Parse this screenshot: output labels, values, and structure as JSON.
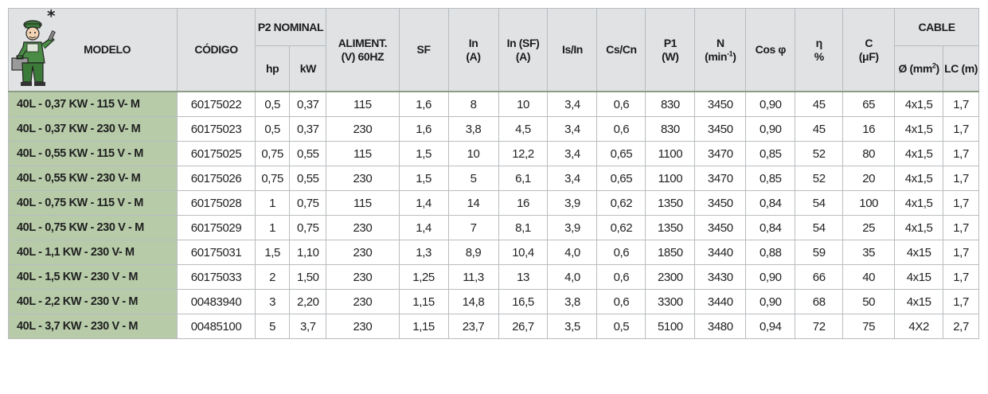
{
  "header": {
    "modelo": "MODELO",
    "codigo": "CÓDIGO",
    "p2_nominal": "P2 NOMINAL",
    "hp": "hp",
    "kw": "kW",
    "aliment_line1": "ALIMENT.",
    "aliment_line2": "(V) 60HZ",
    "sf": "SF",
    "in_line1": "In",
    "in_line2": "(A)",
    "insf_line1": "In (SF)",
    "insf_line2": "(A)",
    "is_in": "Is/In",
    "cs_cn": "Cs/Cn",
    "p1_line1": "P1",
    "p1_line2": "(W)",
    "n_line1": "N",
    "n_line2": "(min",
    "n_sup": "-1",
    "n_line2_close": ")",
    "cos_phi": "Cos φ",
    "eta_line1": "η",
    "eta_line2": "%",
    "c_line1": "C",
    "c_line2": "(μF)",
    "cable": "CABLE",
    "diam": "Ø (mm",
    "diam_sup": "2",
    "diam_close": ")",
    "lc": "LC (m)"
  },
  "rows": [
    {
      "modelo": "40L - 0,37 KW - 115 V- M",
      "codigo": "60175022",
      "hp": "0,5",
      "kw": "0,37",
      "aliment": "115",
      "sf": "1,6",
      "in": "8",
      "insf": "10",
      "isin": "3,4",
      "cscn": "0,6",
      "p1": "830",
      "n": "3450",
      "cos": "0,90",
      "eta": "45",
      "c": "65",
      "diam": "4x1,5",
      "lc": "1,7"
    },
    {
      "modelo": "40L - 0,37 KW - 230 V- M",
      "codigo": "60175023",
      "hp": "0,5",
      "kw": "0,37",
      "aliment": "230",
      "sf": "1,6",
      "in": "3,8",
      "insf": "4,5",
      "isin": "3,4",
      "cscn": "0,6",
      "p1": "830",
      "n": "3450",
      "cos": "0,90",
      "eta": "45",
      "c": "16",
      "diam": "4x1,5",
      "lc": "1,7"
    },
    {
      "modelo": "40L - 0,55 KW - 115 V - M",
      "codigo": "60175025",
      "hp": "0,75",
      "kw": "0,55",
      "aliment": "115",
      "sf": "1,5",
      "in": "10",
      "insf": "12,2",
      "isin": "3,4",
      "cscn": "0,65",
      "p1": "1100",
      "n": "3470",
      "cos": "0,85",
      "eta": "52",
      "c": "80",
      "diam": "4x1,5",
      "lc": "1,7"
    },
    {
      "modelo": "40L - 0,55 KW - 230 V- M",
      "codigo": "60175026",
      "hp": "0,75",
      "kw": "0,55",
      "aliment": "230",
      "sf": "1,5",
      "in": "5",
      "insf": "6,1",
      "isin": "3,4",
      "cscn": "0,65",
      "p1": "1100",
      "n": "3470",
      "cos": "0,85",
      "eta": "52",
      "c": "20",
      "diam": "4x1,5",
      "lc": "1,7"
    },
    {
      "modelo": "40L - 0,75 KW - 115 V - M",
      "codigo": "60175028",
      "hp": "1",
      "kw": "0,75",
      "aliment": "115",
      "sf": "1,4",
      "in": "14",
      "insf": "16",
      "isin": "3,9",
      "cscn": "0,62",
      "p1": "1350",
      "n": "3450",
      "cos": "0,84",
      "eta": "54",
      "c": "100",
      "diam": "4x1,5",
      "lc": "1,7"
    },
    {
      "modelo": "40L - 0,75 KW - 230 V - M",
      "codigo": "60175029",
      "hp": "1",
      "kw": "0,75",
      "aliment": "230",
      "sf": "1,4",
      "in": "7",
      "insf": "8,1",
      "isin": "3,9",
      "cscn": "0,62",
      "p1": "1350",
      "n": "3450",
      "cos": "0,84",
      "eta": "54",
      "c": "25",
      "diam": "4x1,5",
      "lc": "1,7"
    },
    {
      "modelo": "40L - 1,1 KW - 230 V- M",
      "codigo": "60175031",
      "hp": "1,5",
      "kw": "1,10",
      "aliment": "230",
      "sf": "1,3",
      "in": "8,9",
      "insf": "10,4",
      "isin": "4,0",
      "cscn": "0,6",
      "p1": "1850",
      "n": "3440",
      "cos": "0,88",
      "eta": "59",
      "c": "35",
      "diam": "4x15",
      "lc": "1,7"
    },
    {
      "modelo": "40L - 1,5 KW - 230 V - M",
      "codigo": "60175033",
      "hp": "2",
      "kw": "1,50",
      "aliment": "230",
      "sf": "1,25",
      "in": "11,3",
      "insf": "13",
      "isin": "4,0",
      "cscn": "0,6",
      "p1": "2300",
      "n": "3430",
      "cos": "0,90",
      "eta": "66",
      "c": "40",
      "diam": "4x15",
      "lc": "1,7"
    },
    {
      "modelo": "40L - 2,2 KW - 230 V - M",
      "codigo": "00483940",
      "hp": "3",
      "kw": "2,20",
      "aliment": "230",
      "sf": "1,15",
      "in": "14,8",
      "insf": "16,5",
      "isin": "3,8",
      "cscn": "0,6",
      "p1": "3300",
      "n": "3440",
      "cos": "0,90",
      "eta": "68",
      "c": "50",
      "diam": "4x15",
      "lc": "1,7"
    },
    {
      "modelo": "40L - 3,7 KW - 230 V - M",
      "codigo": "00485100",
      "hp": "5",
      "kw": "3,7",
      "aliment": "230",
      "sf": "1,15",
      "in": "23,7",
      "insf": "26,7",
      "isin": "3,5",
      "cscn": "0,5",
      "p1": "5100",
      "n": "3480",
      "cos": "0,94",
      "eta": "72",
      "c": "75",
      "diam": "4X2",
      "lc": "2,7"
    }
  ],
  "colors": {
    "header_bg": "#e0e2e4",
    "model_cell_bg": "#b7cba9",
    "border": "#b9bcbf"
  },
  "icons": {
    "mascot": "worker-mascot-icon"
  }
}
